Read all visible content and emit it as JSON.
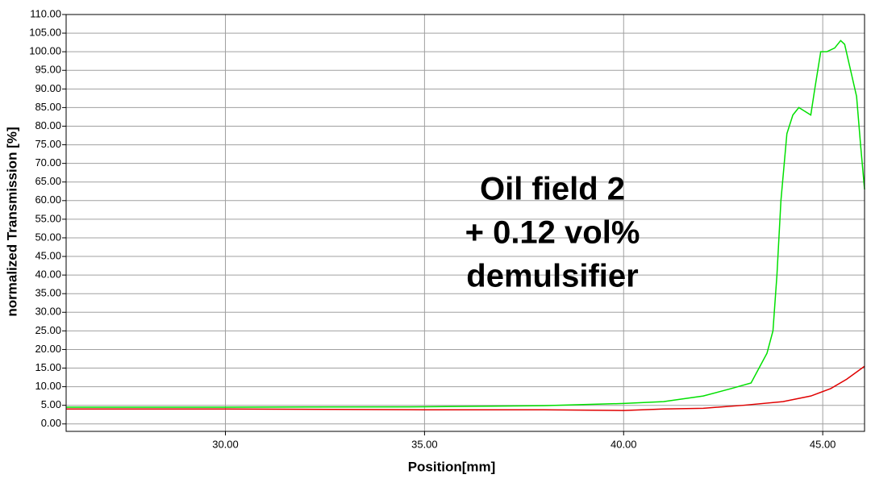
{
  "chart_data": {
    "type": "line",
    "x_label": "Position[mm]",
    "y_label": "normalized Transmission [%]",
    "annotation": [
      "Oil field 2",
      "+ 0.12 vol%",
      "demulsifier"
    ],
    "xlim": [
      26,
      46.05
    ],
    "ylim": [
      -2,
      110
    ],
    "xticks": [
      {
        "value": 30,
        "label": "30.00"
      },
      {
        "value": 35,
        "label": "35.00"
      },
      {
        "value": 40,
        "label": "40.00"
      },
      {
        "value": 45,
        "label": "45.00"
      }
    ],
    "yticks": [
      {
        "value": 0,
        "label": "0.00"
      },
      {
        "value": 5,
        "label": "5.00"
      },
      {
        "value": 10,
        "label": "10.00"
      },
      {
        "value": 15,
        "label": "15.00"
      },
      {
        "value": 20,
        "label": "20.00"
      },
      {
        "value": 25,
        "label": "25.00"
      },
      {
        "value": 30,
        "label": "30.00"
      },
      {
        "value": 35,
        "label": "35.00"
      },
      {
        "value": 40,
        "label": "40.00"
      },
      {
        "value": 45,
        "label": "45.00"
      },
      {
        "value": 50,
        "label": "50.00"
      },
      {
        "value": 55,
        "label": "55.00"
      },
      {
        "value": 60,
        "label": "60.00"
      },
      {
        "value": 65,
        "label": "65.00"
      },
      {
        "value": 70,
        "label": "70.00"
      },
      {
        "value": 75,
        "label": "75.00"
      },
      {
        "value": 80,
        "label": "80.00"
      },
      {
        "value": 85,
        "label": "85.00"
      },
      {
        "value": 90,
        "label": "90.00"
      },
      {
        "value": 95,
        "label": "95.00"
      },
      {
        "value": 100,
        "label": "100.00"
      },
      {
        "value": 105,
        "label": "105.00"
      },
      {
        "value": 110,
        "label": "110.00"
      }
    ],
    "grid": true,
    "series": [
      {
        "color": "#00e000",
        "x": [
          26,
          30,
          35,
          38,
          40,
          41,
          42,
          42.7,
          43.2,
          43.4,
          43.6,
          43.75,
          43.85,
          43.95,
          44.1,
          44.25,
          44.4,
          44.55,
          44.7,
          44.8,
          44.95,
          45.1,
          45.3,
          45.45,
          45.55,
          45.7,
          45.85,
          45.95,
          46.05
        ],
        "values": [
          4.5,
          4.5,
          4.6,
          4.9,
          5.5,
          6,
          7.5,
          9.5,
          11,
          15,
          19,
          25,
          40,
          60,
          78,
          83,
          85,
          84,
          83,
          90,
          100,
          100,
          101,
          103,
          102,
          95,
          88,
          75,
          63
        ]
      },
      {
        "color": "#e00000",
        "x": [
          26,
          30,
          35,
          38,
          40,
          41,
          42,
          43,
          44,
          44.7,
          45.2,
          45.6,
          46.05
        ],
        "values": [
          4,
          4,
          3.8,
          3.8,
          3.6,
          4,
          4.2,
          5,
          6,
          7.5,
          9.5,
          12,
          15.5
        ]
      }
    ]
  }
}
